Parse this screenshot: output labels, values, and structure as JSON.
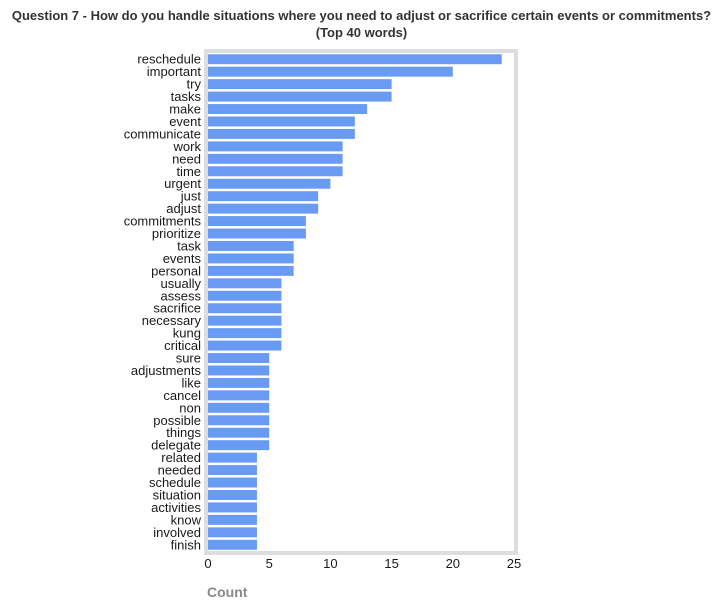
{
  "chart_data": {
    "type": "bar",
    "orientation": "horizontal",
    "title": "Question 7 - How do you handle situations where you need to adjust or sacrifice certain events or commitments?",
    "subtitle": "(Top 40 words)",
    "xlabel": "Count",
    "ylabel": "",
    "xlim": [
      0,
      25
    ],
    "xticks": [
      0,
      5,
      10,
      15,
      20,
      25
    ],
    "grid": false,
    "bar_color": "#6a9bf4",
    "frame_color": "#dddddd",
    "categories": [
      "reschedule",
      "important",
      "try",
      "tasks",
      "make",
      "event",
      "communicate",
      "work",
      "need",
      "time",
      "urgent",
      "just",
      "adjust",
      "commitments",
      "prioritize",
      "task",
      "events",
      "personal",
      "usually",
      "assess",
      "sacrifice",
      "necessary",
      "kung",
      "critical",
      "sure",
      "adjustments",
      "like",
      "cancel",
      "non",
      "possible",
      "things",
      "delegate",
      "related",
      "needed",
      "schedule",
      "situation",
      "activities",
      "know",
      "involved",
      "finish"
    ],
    "values": [
      24,
      20,
      15,
      15,
      13,
      12,
      12,
      11,
      11,
      11,
      10,
      9,
      9,
      8,
      8,
      7,
      7,
      7,
      6,
      6,
      6,
      6,
      6,
      6,
      5,
      5,
      5,
      5,
      5,
      5,
      5,
      5,
      4,
      4,
      4,
      4,
      4,
      4,
      4,
      4
    ]
  }
}
